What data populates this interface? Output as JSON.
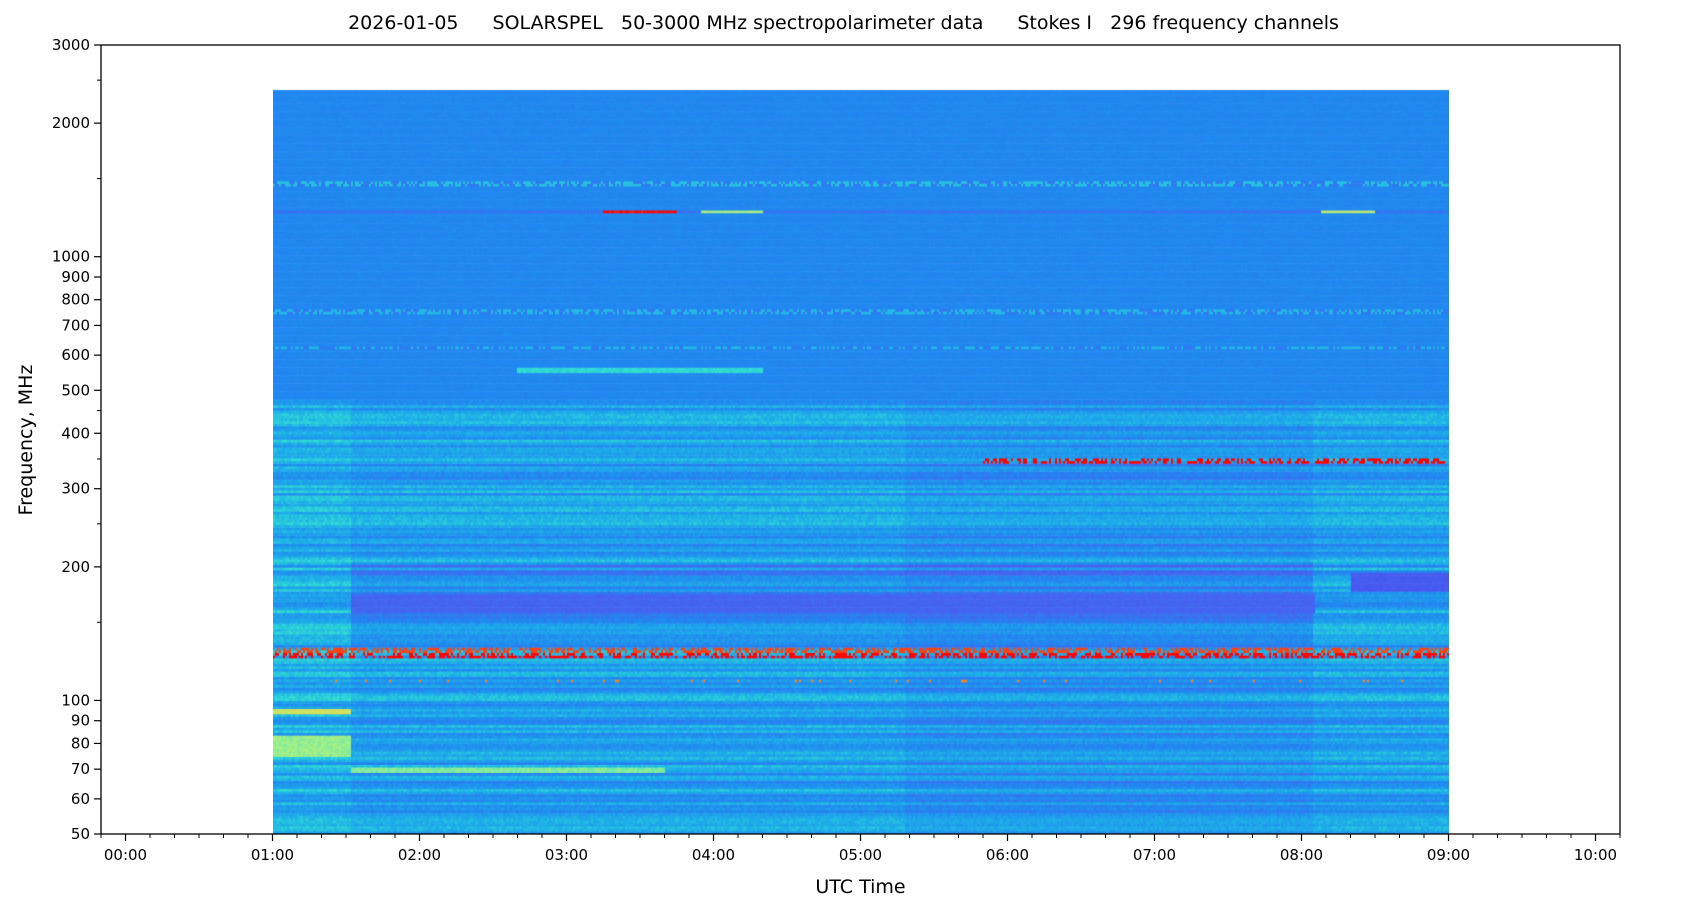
{
  "chart_data": {
    "type": "heatmap",
    "title_parts": [
      "2026-01-05",
      "SOLARSPEL   50-3000 MHz spectropolarimeter data",
      "Stokes I   296 frequency channels"
    ],
    "xlabel": "UTC Time",
    "ylabel": "Frequency, MHz",
    "x_scale": "time",
    "xlim": [
      "2026-01-04 23:50",
      "2026-01-05 10:10"
    ],
    "x_ticks": [
      "00:00",
      "01:00",
      "02:00",
      "03:00",
      "04:00",
      "05:00",
      "06:00",
      "07:00",
      "08:00",
      "09:00",
      "10:00"
    ],
    "x_minor_tick_interval_minutes": 10,
    "y_scale": "log",
    "ylim": [
      50,
      3000
    ],
    "y_ticks": [
      50,
      60,
      70,
      80,
      90,
      100,
      200,
      300,
      400,
      500,
      600,
      700,
      800,
      900,
      1000,
      2000,
      3000
    ],
    "y_minor_ticks": [
      150,
      250,
      350,
      450,
      1500,
      2500
    ],
    "data_time_range": [
      "01:00",
      "09:00"
    ],
    "frequency_channels": 296,
    "colormap": "rainbow (violet-blue low, red high)",
    "colors": {
      "background_level": "#2088f0",
      "low": "#4a3df0",
      "high": "#ff0000"
    },
    "features": [
      {
        "freq_mhz": 1850,
        "start": "01:00",
        "end": "09:00",
        "level": 0.52,
        "style": "intermittent"
      },
      {
        "freq_mhz": 1600,
        "start": "01:00",
        "end": "09:00",
        "level": 0.25,
        "style": "line"
      },
      {
        "freq_mhz": 1600,
        "start": "03:15",
        "end": "03:45",
        "level": 1.0,
        "style": "burst"
      },
      {
        "freq_mhz": 1600,
        "start": "03:55",
        "end": "04:20",
        "level": 0.72,
        "style": "burst"
      },
      {
        "freq_mhz": 1600,
        "start": "08:08",
        "end": "08:30",
        "level": 0.75,
        "style": "burst"
      },
      {
        "freq_mhz": 950,
        "start": "01:00",
        "end": "09:00",
        "level": 0.5,
        "style": "intermittent"
      },
      {
        "freq_mhz": 790,
        "start": "01:00",
        "end": "09:00",
        "level": 0.5,
        "style": "intermittent"
      },
      {
        "freq_mhz": 700,
        "start": "02:40",
        "end": "04:20",
        "level": 0.58,
        "style": "line"
      },
      {
        "freq_mhz": 440,
        "start": "05:50",
        "end": "09:00",
        "level": 1.0,
        "style": "dots"
      },
      {
        "freq_mhz": 165,
        "start": "01:00",
        "end": "09:00",
        "level": 0.95,
        "style": "dots"
      },
      {
        "freq_mhz": 160,
        "start": "01:00",
        "end": "09:00",
        "level": 1.0,
        "style": "dots"
      },
      {
        "freq_mhz": 140,
        "start": "01:00",
        "end": "09:00",
        "level": 0.9,
        "style": "sparse-dots"
      },
      {
        "freq_mhz": 120,
        "start": "01:00",
        "end": "01:32",
        "level": 0.78,
        "style": "line"
      },
      {
        "freq_mhz": 100,
        "start": "01:00",
        "end": "01:32",
        "level": 0.7,
        "style": "band"
      },
      {
        "freq_mhz": 88,
        "start": "01:32",
        "end": "03:40",
        "level": 0.68,
        "style": "line"
      },
      {
        "freq_mhz": 57,
        "start": "01:32",
        "end": "03:40",
        "level": 0.75,
        "style": "band"
      },
      {
        "freq_mhz": 57,
        "start": "05:30",
        "end": "08:05",
        "level": 0.12,
        "style": "band"
      },
      {
        "freq_mhz": 210,
        "start": "01:32",
        "end": "08:05",
        "level": 0.2,
        "style": "band"
      },
      {
        "freq_mhz": 235,
        "start": "08:20",
        "end": "09:00",
        "level": 0.15,
        "style": "band"
      }
    ]
  }
}
